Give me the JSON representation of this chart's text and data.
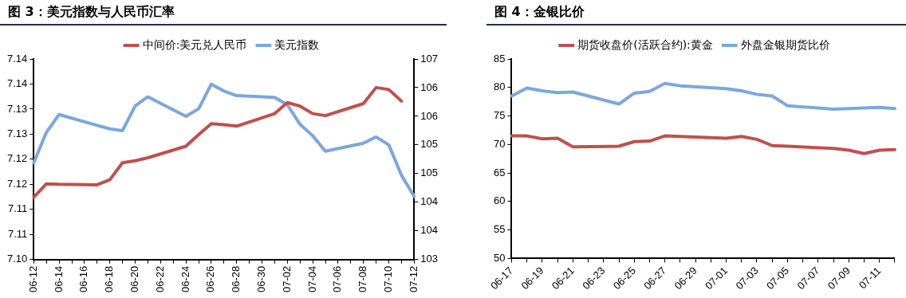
{
  "chart_data": [
    {
      "type": "line",
      "title": "图 3：美元指数与人民币汇率",
      "categories": [
        "06-12",
        null,
        "06-14",
        null,
        "06-16",
        null,
        "06-18",
        null,
        "06-20",
        null,
        "06-22",
        null,
        "06-24",
        null,
        "06-26",
        null,
        "06-28",
        null,
        "06-30",
        null,
        "07-02",
        null,
        "07-04",
        null,
        "07-06",
        null,
        "07-08",
        null,
        "07-10",
        null,
        "07-12"
      ],
      "series": [
        {
          "name": "中间价:美元兑人民币",
          "color": "#c0504d",
          "values": [
            7.1124,
            7.1151,
            7.115,
            null,
            null,
            7.1149,
            7.1159,
            7.1193,
            7.1197,
            7.1203,
            null,
            null,
            7.1226,
            7.1249,
            7.1271,
            7.1269,
            7.1266,
            null,
            null,
            7.1291,
            7.1313,
            7.1306,
            7.1291,
            7.1287,
            null,
            null,
            7.1311,
            7.1343,
            7.1339,
            7.1316,
            null
          ]
        },
        {
          "name": "美元指数",
          "color": "#7ba7dd",
          "axis": "y2",
          "values": [
            104.69,
            105.22,
            105.53,
            null,
            null,
            105.34,
            105.28,
            105.25,
            105.68,
            105.84,
            null,
            null,
            105.5,
            105.63,
            106.06,
            105.94,
            105.86,
            null,
            null,
            105.83,
            105.7,
            105.36,
            105.16,
            104.89,
            null,
            null,
            105.03,
            105.14,
            105.0,
            104.47,
            104.1
          ]
        }
      ],
      "ylim": [
        7.1,
        7.14
      ],
      "yticks": [
        {
          "value": 7.1,
          "label": "7.10"
        },
        {
          "value": 7.105,
          "label": "7.11"
        },
        {
          "value": 7.11,
          "label": "7.11"
        },
        {
          "value": 7.115,
          "label": "7.12"
        },
        {
          "value": 7.12,
          "label": "7.12"
        },
        {
          "value": 7.125,
          "label": "7.13"
        },
        {
          "value": 7.13,
          "label": "7.13"
        },
        {
          "value": 7.135,
          "label": "7.14"
        },
        {
          "value": 7.14,
          "label": "7.14"
        }
      ],
      "y2lim": [
        103,
        106.5
      ],
      "y2ticks": [
        {
          "value": 103,
          "label": "103"
        },
        {
          "value": 103.5,
          "label": "104"
        },
        {
          "value": 104,
          "label": "104"
        },
        {
          "value": 104.5,
          "label": "105"
        },
        {
          "value": 105,
          "label": "105"
        },
        {
          "value": 105.5,
          "label": "106"
        },
        {
          "value": 106,
          "label": "106"
        },
        {
          "value": 106.5,
          "label": "107"
        }
      ],
      "grid": false,
      "legend": "top",
      "marker": "none",
      "line_style": "solid"
    },
    {
      "type": "line",
      "title": "图 4：金银比价",
      "categories": [
        "06-17",
        null,
        "06-19",
        null,
        "06-21",
        null,
        "06-23",
        null,
        "06-25",
        null,
        "06-27",
        null,
        "06-29",
        null,
        "07-01",
        null,
        "07-03",
        null,
        "07-05",
        null,
        "07-07",
        null,
        "07-09",
        null,
        "07-11",
        null
      ],
      "series": [
        {
          "name": "期货收盘价(活跃合约):黄金",
          "color": "#c0504d",
          "values": [
            71.5,
            71.5,
            71.0,
            71.1,
            69.6,
            null,
            null,
            69.7,
            70.5,
            70.6,
            71.5,
            71.4,
            null,
            null,
            71.1,
            71.4,
            70.9,
            69.8,
            69.7,
            null,
            null,
            69.3,
            69.0,
            68.4,
            69.0,
            69.1
          ]
        },
        {
          "name": "外盘金银期货比价",
          "color": "#7ba7dd",
          "values": [
            78.5,
            79.9,
            79.4,
            79.1,
            79.2,
            null,
            null,
            77.1,
            79.0,
            79.3,
            80.7,
            80.3,
            null,
            null,
            79.8,
            79.4,
            78.8,
            78.5,
            76.8,
            null,
            null,
            76.2,
            76.3,
            76.4,
            76.5,
            76.3
          ]
        }
      ],
      "ylim": [
        50,
        85
      ],
      "yticks": [
        50,
        55,
        60,
        65,
        70,
        75,
        80,
        85
      ],
      "grid": false,
      "legend": "top",
      "marker": "none",
      "line_style": "solid"
    }
  ]
}
